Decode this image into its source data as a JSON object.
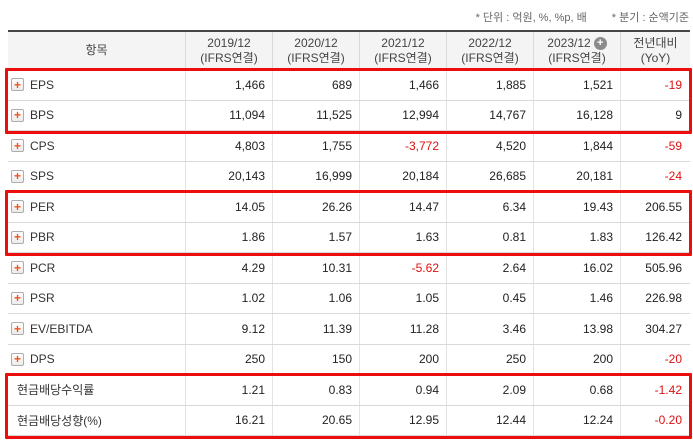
{
  "legend": {
    "unit_note": "* 단위 : 억원, %, %p, 배",
    "basis_note": "* 분기 : 순액기준"
  },
  "table": {
    "item_column_label": "항목",
    "yoy_label": "전년대비",
    "yoy_sub_label": "(YoY)",
    "periods": [
      {
        "label": "2019/12",
        "sub": "(IFRS연결)",
        "add_icon": false
      },
      {
        "label": "2020/12",
        "sub": "(IFRS연결)",
        "add_icon": false
      },
      {
        "label": "2021/12",
        "sub": "(IFRS연결)",
        "add_icon": false
      },
      {
        "label": "2022/12",
        "sub": "(IFRS연결)",
        "add_icon": false
      },
      {
        "label": "2023/12",
        "sub": "(IFRS연결)",
        "add_icon": true
      }
    ],
    "rows": [
      {
        "label": "EPS",
        "expandable": true,
        "values": [
          "1,466",
          "689",
          "1,466",
          "1,885",
          "1,521"
        ],
        "yoy": "-19"
      },
      {
        "label": "BPS",
        "expandable": true,
        "values": [
          "11,094",
          "11,525",
          "12,994",
          "14,767",
          "16,128"
        ],
        "yoy": "9"
      },
      {
        "label": "CPS",
        "expandable": true,
        "values": [
          "4,803",
          "1,755",
          "-3,772",
          "4,520",
          "1,844"
        ],
        "yoy": "-59"
      },
      {
        "label": "SPS",
        "expandable": true,
        "values": [
          "20,143",
          "16,999",
          "20,184",
          "26,685",
          "20,181"
        ],
        "yoy": "-24"
      },
      {
        "label": "PER",
        "expandable": true,
        "values": [
          "14.05",
          "26.26",
          "14.47",
          "6.34",
          "19.43"
        ],
        "yoy": "206.55"
      },
      {
        "label": "PBR",
        "expandable": true,
        "values": [
          "1.86",
          "1.57",
          "1.63",
          "0.81",
          "1.83"
        ],
        "yoy": "126.42"
      },
      {
        "label": "PCR",
        "expandable": true,
        "values": [
          "4.29",
          "10.31",
          "-5.62",
          "2.64",
          "16.02"
        ],
        "yoy": "505.96"
      },
      {
        "label": "PSR",
        "expandable": true,
        "values": [
          "1.02",
          "1.06",
          "1.05",
          "0.45",
          "1.46"
        ],
        "yoy": "226.98"
      },
      {
        "label": "EV/EBITDA",
        "expandable": true,
        "values": [
          "9.12",
          "11.39",
          "11.28",
          "3.46",
          "13.98"
        ],
        "yoy": "304.27"
      },
      {
        "label": "DPS",
        "expandable": true,
        "values": [
          "250",
          "150",
          "200",
          "250",
          "200"
        ],
        "yoy": "-20"
      },
      {
        "label": "현금배당수익률",
        "expandable": false,
        "values": [
          "1.21",
          "0.83",
          "0.94",
          "2.09",
          "0.68"
        ],
        "yoy": "-1.42"
      },
      {
        "label": "현금배당성향(%)",
        "expandable": false,
        "values": [
          "16.21",
          "20.65",
          "12.95",
          "12.44",
          "12.24"
        ],
        "yoy": "-0.20"
      }
    ],
    "highlight_groups": [
      [
        0,
        1
      ],
      [
        4,
        5
      ],
      [
        10,
        11
      ]
    ]
  },
  "icons": {
    "expand_plus_glyph": "+",
    "header_add_glyph": "+"
  },
  "colors": {
    "highlight_border": "#ec0d0d",
    "negative_value": "#e01010",
    "expand_plus": "#f4511e",
    "header_add_circle": "#8b8b8b"
  }
}
